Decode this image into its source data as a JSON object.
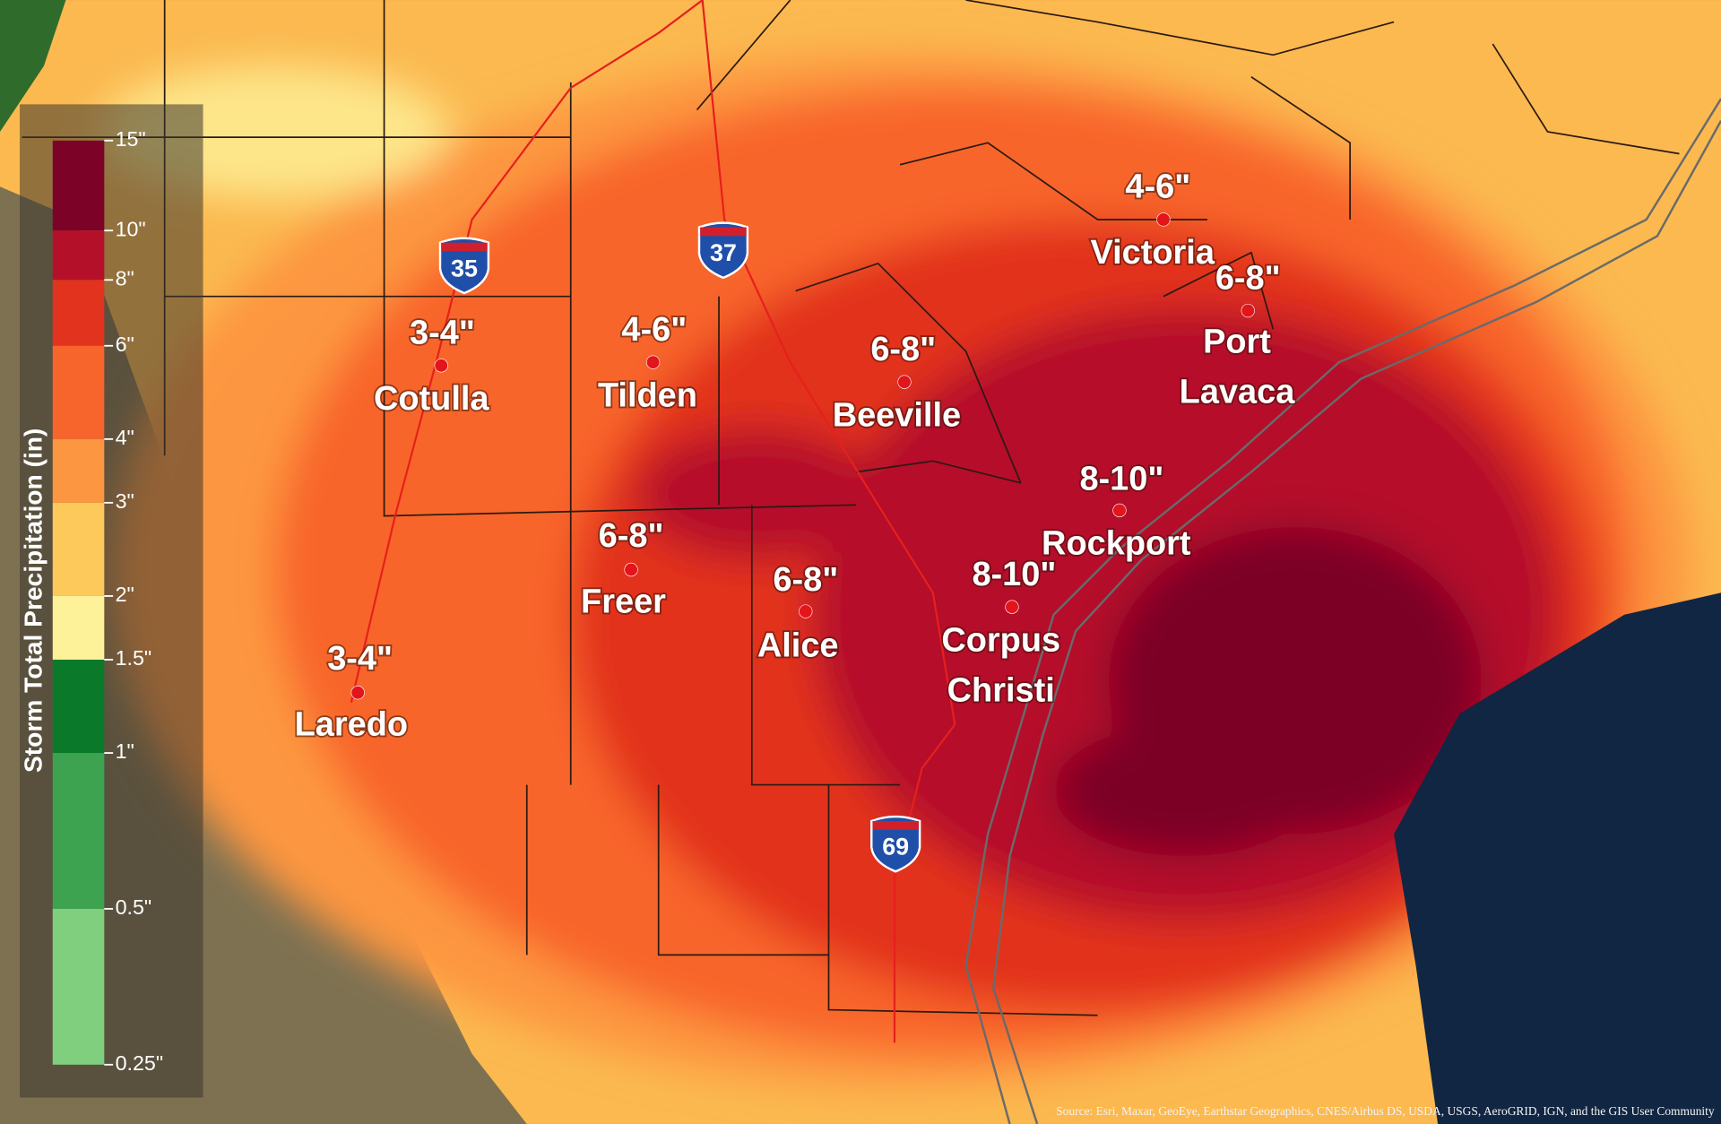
{
  "legend": {
    "title": "Storm Total Precipitation (in)",
    "labels": [
      "15\"",
      "10\"",
      "8\"",
      "6\"",
      "4\"",
      "3\"",
      "2\"",
      "1.5\"",
      "1\"",
      "0.5\"",
      "0.25\""
    ]
  },
  "cities": [
    {
      "amount": "4-6\"",
      "name": [
        "Victoria"
      ]
    },
    {
      "amount": "6-8\"",
      "name": [
        "Port",
        "Lavaca"
      ]
    },
    {
      "amount": "3-4\"",
      "name": [
        "Cotulla"
      ]
    },
    {
      "amount": "4-6\"",
      "name": [
        "Tilden"
      ]
    },
    {
      "amount": "6-8\"",
      "name": [
        "Beeville"
      ]
    },
    {
      "amount": "8-10\"",
      "name": [
        "Rockport"
      ]
    },
    {
      "amount": "6-8\"",
      "name": [
        "Freer"
      ]
    },
    {
      "amount": "6-8\"",
      "name": [
        "Alice"
      ]
    },
    {
      "amount": "8-10\"",
      "name": [
        "Corpus",
        "Christi"
      ]
    },
    {
      "amount": "3-4\"",
      "name": [
        "Laredo"
      ]
    }
  ],
  "highways": [
    "35",
    "37",
    "69"
  ],
  "source": "Source: Esri, Maxar, GeoEye, Earthstar Geographics, CNES/Airbus DS, USDA, USGS, AeroGRID, IGN, and the GIS User Community"
}
